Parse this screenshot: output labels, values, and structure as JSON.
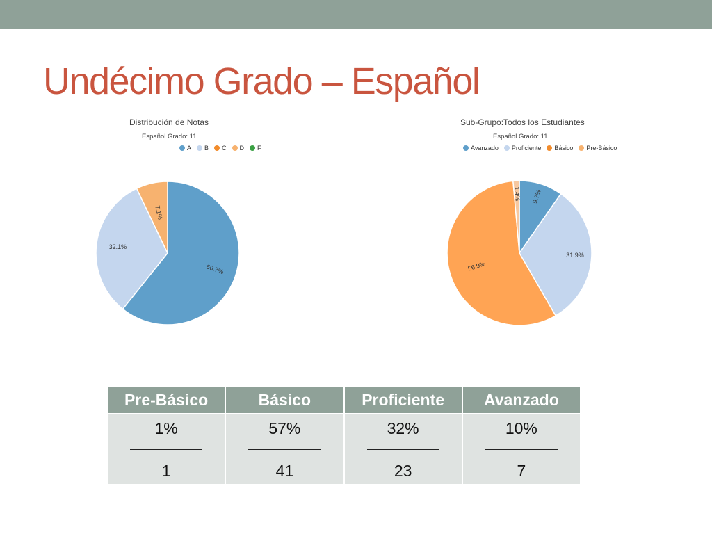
{
  "slide": {
    "title": "Undécimo Grado – Español"
  },
  "chart_data": [
    {
      "type": "pie",
      "title": "Distribución de Notas",
      "subtitle": "Español Grado: 11",
      "legend": {
        "position": "top",
        "entries": [
          "A",
          "B",
          "C",
          "D",
          "F"
        ]
      },
      "colors": {
        "A": "#5f9fca",
        "B": "#c4d6ee",
        "C": "#f28c2c",
        "D": "#f7b26f",
        "F": "#3aa043"
      },
      "slices": [
        {
          "name": "A",
          "value": 60.7,
          "label": "60.7%",
          "color": "#5f9fca"
        },
        {
          "name": "B",
          "value": 32.1,
          "label": "32.1%",
          "color": "#c4d6ee"
        },
        {
          "name": "D",
          "value": 7.1,
          "label": "7.1%",
          "color": "#f7b26f"
        }
      ]
    },
    {
      "type": "pie",
      "title": "Sub-Grupo:Todos los Estudiantes",
      "subtitle": "Español Grado: 11",
      "legend": {
        "position": "top",
        "entries": [
          "Avanzado",
          "Proficiente",
          "Básico",
          "Pre-Básico"
        ]
      },
      "colors": {
        "Avanzado": "#5f9fca",
        "Proficiente": "#c4d6ee",
        "Básico": "#f28c2c",
        "Pre-Básico": "#f7b26f"
      },
      "slices": [
        {
          "name": "Avanzado",
          "value": 9.7,
          "label": "9.7%",
          "color": "#5f9fca"
        },
        {
          "name": "Proficiente",
          "value": 31.9,
          "label": "31.9%",
          "color": "#c4d6ee"
        },
        {
          "name": "Básico",
          "value": 56.9,
          "label": "56.9%",
          "color": "#ffa454"
        },
        {
          "name": "Pre-Básico",
          "value": 1.4,
          "label": "1.4%",
          "color": "#f7c8a0"
        }
      ]
    }
  ],
  "table": {
    "headers": [
      "Pre-Básico",
      "Básico",
      "Proficiente",
      "Avanzado"
    ],
    "percents": [
      "1%",
      "57%",
      "32%",
      "10%"
    ],
    "counts": [
      "1",
      "41",
      "23",
      "7"
    ]
  }
}
